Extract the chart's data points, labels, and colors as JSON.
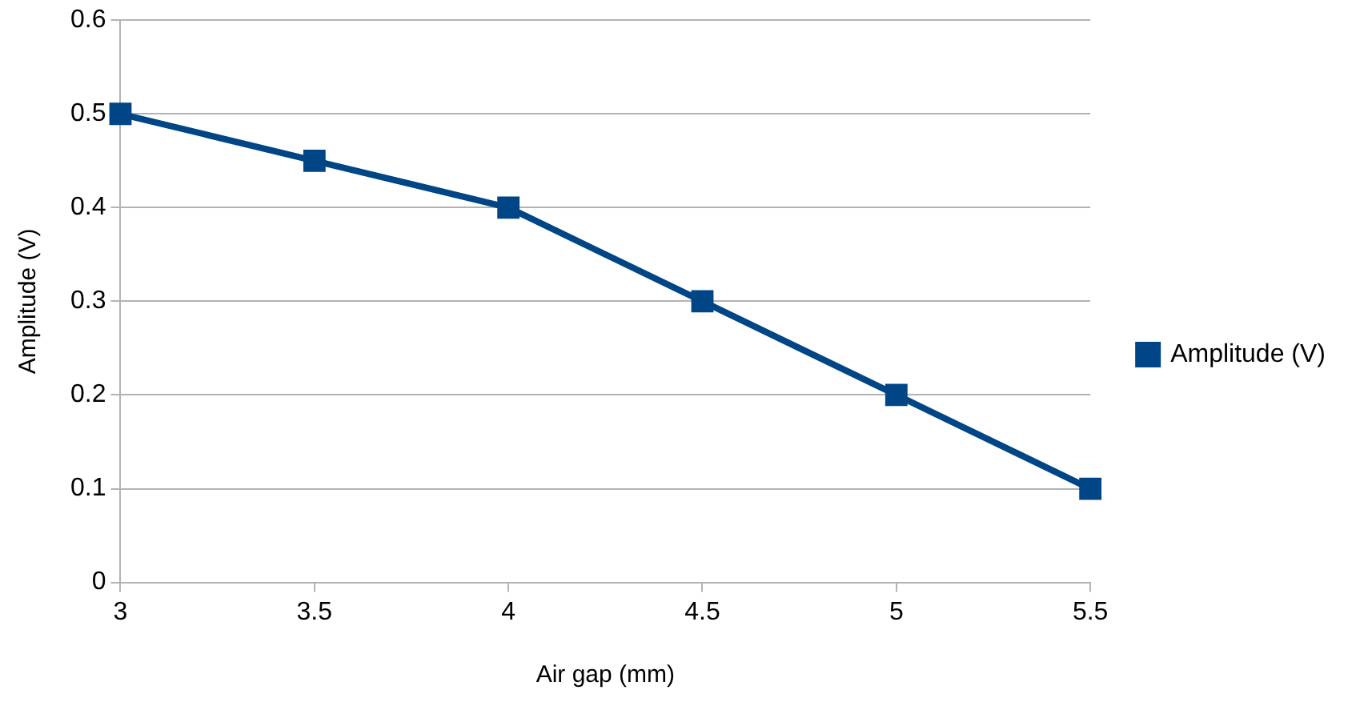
{
  "chart_data": {
    "type": "line",
    "xlabel": "Air gap (mm)",
    "ylabel": "Amplitude (V)",
    "x": [
      3,
      3.5,
      4,
      4.5,
      5,
      5.5
    ],
    "series": [
      {
        "name": "Amplitude (V)",
        "color": "#004586",
        "values": [
          0.5,
          0.45,
          0.4,
          0.3,
          0.2,
          0.1
        ]
      }
    ],
    "xlim": [
      3,
      5.5
    ],
    "xticks": [
      3,
      3.5,
      4,
      4.5,
      5,
      5.5
    ],
    "ylim": [
      0,
      0.6
    ],
    "yticks": [
      0,
      0.1,
      0.2,
      0.3,
      0.4,
      0.5,
      0.6
    ],
    "grid": "y",
    "legend": "right",
    "marker": "square",
    "line_style": "solid"
  }
}
